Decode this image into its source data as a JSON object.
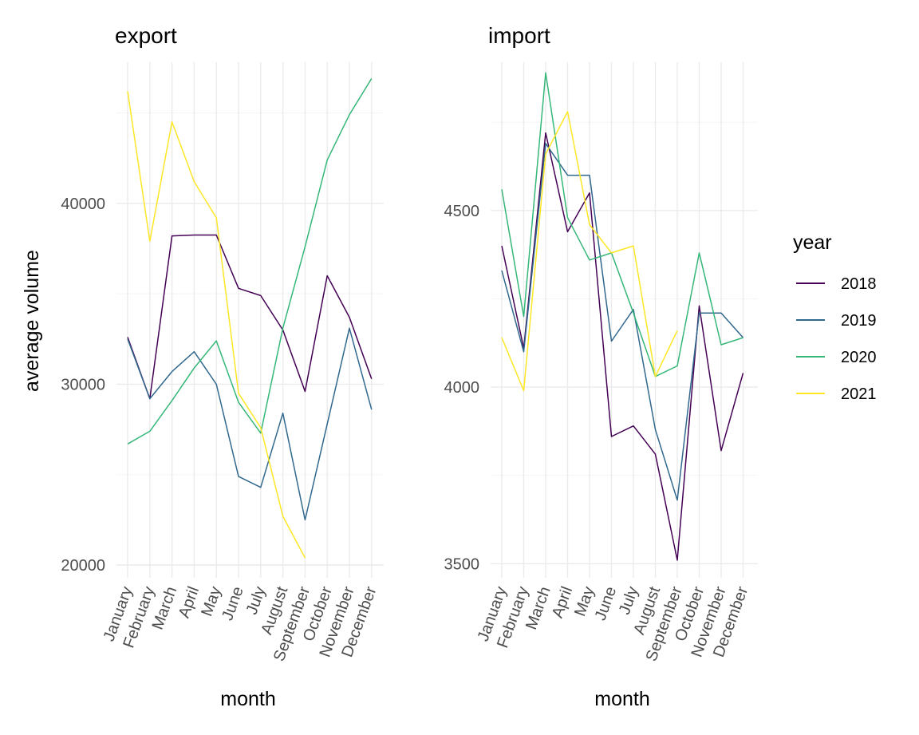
{
  "chart_data": [
    {
      "type": "line",
      "panel": "export",
      "title": "export",
      "xlabel": "month",
      "ylabel": "average volume",
      "categories": [
        "January",
        "February",
        "March",
        "April",
        "May",
        "June",
        "July",
        "August",
        "September",
        "October",
        "November",
        "December"
      ],
      "y_ticks": [
        20000,
        30000,
        40000
      ],
      "y_tick_labels": [
        "20000",
        "30000",
        "40000"
      ],
      "ylim": [
        19300,
        47800
      ],
      "grid": true,
      "series": [
        {
          "name": "2018",
          "values": [
            32600,
            29200,
            38200,
            38250,
            38250,
            35300,
            34900,
            33000,
            29600,
            36000,
            33700,
            30300
          ]
        },
        {
          "name": "2019",
          "values": [
            32500,
            29200,
            30700,
            31800,
            30000,
            24900,
            24300,
            28400,
            22500,
            27800,
            33100,
            28600
          ]
        },
        {
          "name": "2020",
          "values": [
            26700,
            27400,
            29100,
            30900,
            32400,
            29000,
            27300,
            33100,
            37600,
            42400,
            44900,
            46900
          ]
        },
        {
          "name": "2021",
          "values": [
            46200,
            37900,
            44500,
            41200,
            39200,
            29500,
            27600,
            22700,
            20400,
            null,
            null,
            null
          ]
        }
      ]
    },
    {
      "type": "line",
      "panel": "import",
      "title": "import",
      "xlabel": "month",
      "ylabel": "",
      "categories": [
        "January",
        "February",
        "March",
        "April",
        "May",
        "June",
        "July",
        "August",
        "September",
        "October",
        "November",
        "December"
      ],
      "y_ticks": [
        3500,
        4000,
        4500
      ],
      "y_tick_labels": [
        "3500",
        "4000",
        "4500"
      ],
      "ylim": [
        3460,
        4920
      ],
      "grid": true,
      "series": [
        {
          "name": "2018",
          "values": [
            4400,
            4110,
            4720,
            4440,
            4550,
            3860,
            3890,
            3810,
            3510,
            4230,
            3820,
            4040
          ]
        },
        {
          "name": "2019",
          "values": [
            4330,
            4100,
            4690,
            4600,
            4600,
            4130,
            4220,
            3880,
            3680,
            4210,
            4210,
            4140
          ]
        },
        {
          "name": "2020",
          "values": [
            4560,
            4200,
            4890,
            4480,
            4360,
            4380,
            4210,
            4030,
            4060,
            4380,
            4120,
            4140
          ]
        },
        {
          "name": "2021",
          "values": [
            4140,
            3990,
            4660,
            4780,
            4460,
            4380,
            4400,
            4030,
            4160,
            null,
            null,
            null
          ]
        }
      ]
    }
  ],
  "legend": {
    "title": "year",
    "placement": "right",
    "items": [
      {
        "label": "2018",
        "color": "#440154"
      },
      {
        "label": "2019",
        "color": "#31688E"
      },
      {
        "label": "2020",
        "color": "#35B779"
      },
      {
        "label": "2021",
        "color": "#FDE725"
      }
    ]
  }
}
